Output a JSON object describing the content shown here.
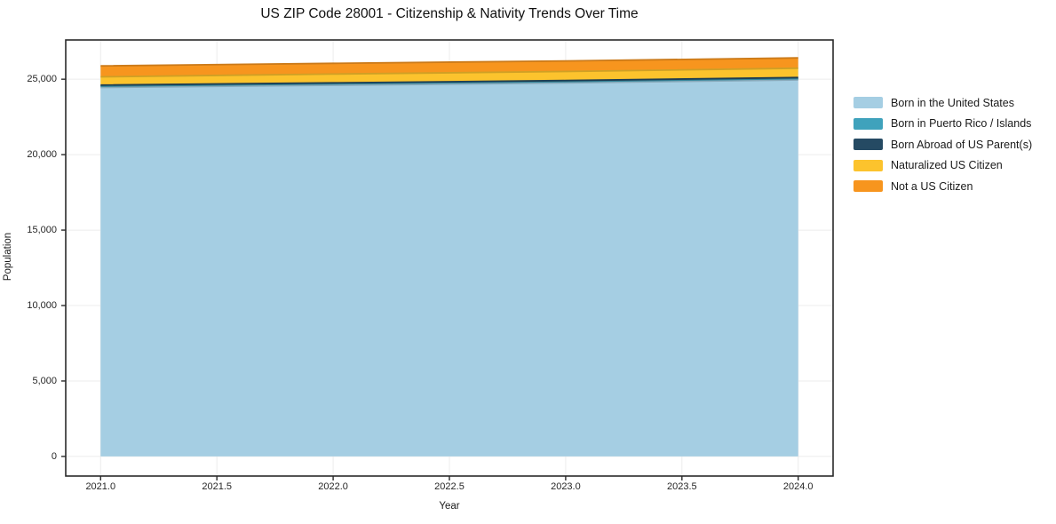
{
  "chart_data": {
    "type": "area",
    "stacked": true,
    "title": "US ZIP Code 28001 - Citizenship & Nativity Trends Over Time",
    "xlabel": "Year",
    "ylabel": "Population",
    "x": [
      2021,
      2022,
      2023,
      2024
    ],
    "series": [
      {
        "name": "Born in the United States",
        "color": "#a5cee3",
        "values": [
          24450,
          24600,
          24750,
          24950
        ]
      },
      {
        "name": "Born in Puerto Rico / Islands",
        "color": "#3fa2bc",
        "values": [
          90,
          90,
          90,
          90
        ]
      },
      {
        "name": "Born Abroad of US Parent(s)",
        "color": "#254a63",
        "values": [
          70,
          70,
          70,
          70
        ]
      },
      {
        "name": "Naturalized US Citizen",
        "color": "#fcc32d",
        "values": [
          550,
          580,
          600,
          620
        ]
      },
      {
        "name": "Not a US Citizen",
        "color": "#f7951e",
        "values": [
          720,
          710,
          700,
          680
        ]
      }
    ],
    "stack_totals": [
      25880,
      26050,
      26210,
      26410
    ],
    "x_ticks": [
      "2021.0",
      "2021.5",
      "2022.0",
      "2022.5",
      "2023.0",
      "2023.5",
      "2024.0"
    ],
    "x_tick_values": [
      2021,
      2021.5,
      2022,
      2022.5,
      2023,
      2023.5,
      2024
    ],
    "y_ticks": [
      "0",
      "5,000",
      "10,000",
      "15,000",
      "20,000",
      "25,000"
    ],
    "y_tick_values": [
      0,
      5000,
      10000,
      15000,
      20000,
      25000
    ],
    "xlim": [
      2020.85,
      2024.15
    ],
    "ylim": [
      -1300,
      27600
    ],
    "grid": true,
    "legend_position": "right",
    "colors": {
      "background": "#ffffff",
      "grid": "#ececec",
      "axis_border": "#2a2a2a",
      "tick_text": "#262626"
    }
  }
}
